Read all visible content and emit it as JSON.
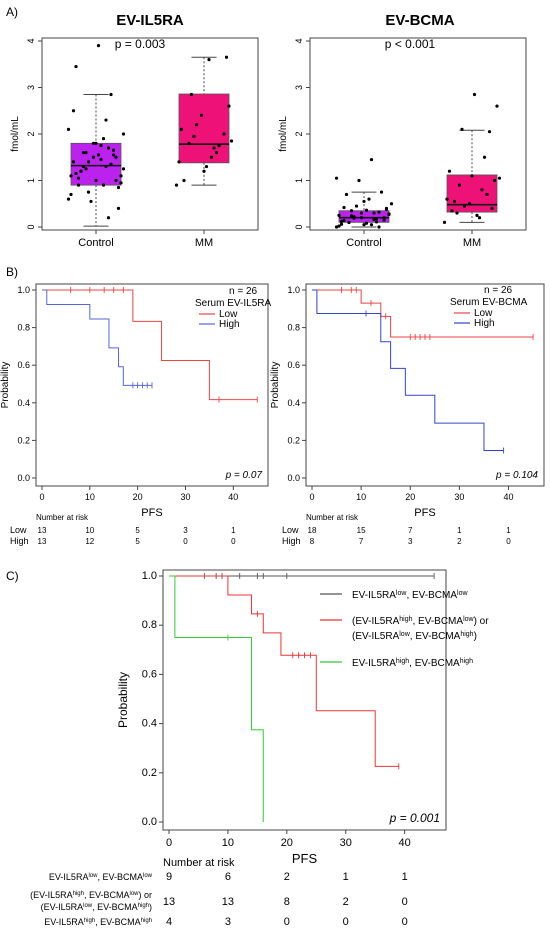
{
  "panels": {
    "a": "A)",
    "b": "B)",
    "c": "C)"
  },
  "chart_data": [
    {
      "id": "a1",
      "type": "box",
      "title": "EV-IL5RA",
      "ylabel": "fmol/mL",
      "pvalue": "p = 0.003",
      "categories": [
        "Control",
        "MM"
      ],
      "ylim": [
        0,
        4
      ],
      "yticks": [
        0,
        1,
        2,
        3,
        4
      ],
      "boxes": [
        {
          "name": "Control",
          "color": "#bb22ee",
          "whisker_low": 0.02,
          "q1": 0.9,
          "median": 1.32,
          "q3": 1.8,
          "whisker_high": 2.85
        },
        {
          "name": "MM",
          "color": "#ee1177",
          "whisker_low": 0.9,
          "q1": 1.38,
          "median": 1.78,
          "q3": 2.86,
          "whisker_high": 3.65
        }
      ],
      "points": [
        [
          0.6,
          0.9,
          1.2,
          1.5,
          1.8,
          1.1,
          1.3,
          1.6,
          0.85,
          1.0,
          1.4,
          1.7,
          1.25,
          0.95,
          1.55,
          1.15,
          1.35,
          0.75,
          2.0,
          1.45,
          1.05,
          1.65,
          0.55,
          2.1,
          1.9,
          1.2,
          1.0,
          1.5,
          0.7,
          2.3,
          1.3,
          0.4,
          1.8,
          2.5,
          0.2,
          1.6,
          1.1,
          3.9,
          3.45,
          2.85,
          1.4,
          1.25,
          1.75,
          0.9,
          1.55
        ],
        [
          0.9,
          1.5,
          1.8,
          2.0,
          2.4,
          1.4,
          1.7,
          2.85,
          3.65,
          1.2,
          2.1,
          1.6,
          1.95,
          2.6,
          1.3,
          1.0,
          1.75,
          2.2,
          1.85,
          3.6
        ]
      ]
    },
    {
      "id": "a2",
      "type": "box",
      "title": "EV-BCMA",
      "ylabel": "fmol/mL",
      "pvalue": "p < 0.001",
      "categories": [
        "Control",
        "MM"
      ],
      "ylim": [
        0,
        4
      ],
      "yticks": [
        0,
        1,
        2,
        3,
        4
      ],
      "boxes": [
        {
          "name": "Control",
          "color": "#bb22ee",
          "whisker_low": 0.0,
          "q1": 0.1,
          "median": 0.2,
          "q3": 0.35,
          "whisker_high": 0.75
        },
        {
          "name": "MM",
          "color": "#ee1177",
          "whisker_low": 0.1,
          "q1": 0.32,
          "median": 0.48,
          "q3": 1.12,
          "whisker_high": 2.08
        }
      ],
      "points": [
        [
          0.0,
          0.05,
          0.1,
          0.15,
          0.2,
          0.25,
          0.3,
          0.35,
          0.4,
          0.05,
          0.12,
          0.18,
          0.22,
          0.28,
          0.08,
          0.14,
          0.32,
          0.45,
          0.5,
          0.6,
          0.7,
          0.75,
          1.0,
          1.05,
          1.45,
          0.1,
          0.2,
          0.3,
          0.02,
          0.16,
          0.24,
          0.38,
          0.55,
          0.06,
          0.11,
          0.19,
          0.27,
          0.36,
          0.42,
          0.0
        ],
        [
          0.1,
          0.2,
          0.3,
          0.4,
          0.5,
          0.6,
          0.8,
          0.9,
          1.0,
          1.1,
          1.2,
          1.5,
          2.1,
          2.6,
          2.85,
          0.35,
          0.7,
          0.45,
          1.05,
          0.25,
          0.55,
          2.05
        ]
      ]
    },
    {
      "id": "b1",
      "type": "km",
      "n_label": "n = 26",
      "legend_title": "Serum EV-IL5RA",
      "pvalue": "p = 0.07",
      "xlabel": "PFS",
      "ylabel": "Probability",
      "xlim": [
        0,
        46
      ],
      "ylim": [
        0,
        1
      ],
      "xticks": [
        0,
        10,
        20,
        30,
        40
      ],
      "yticks": [
        0.0,
        0.2,
        0.4,
        0.6,
        0.8,
        1.0
      ],
      "series": [
        {
          "name": "Low",
          "color": "#ee4444",
          "steps": [
            [
              0,
              1.0
            ],
            [
              19,
              0.833
            ],
            [
              25,
              0.625
            ],
            [
              35,
              0.417
            ],
            [
              45,
              0.417
            ]
          ],
          "censors": [
            [
              6,
              1.0
            ],
            [
              10,
              1.0
            ],
            [
              13,
              1.0
            ],
            [
              15,
              1.0
            ],
            [
              17,
              1.0
            ],
            [
              37,
              0.417
            ],
            [
              45,
              0.417
            ]
          ]
        },
        {
          "name": "High",
          "color": "#5566dd",
          "steps": [
            [
              0,
              1.0
            ],
            [
              1,
              0.923
            ],
            [
              10,
              0.846
            ],
            [
              14,
              0.692
            ],
            [
              16,
              0.592
            ],
            [
              17,
              0.493
            ],
            [
              23,
              0.493
            ]
          ],
          "censors": [
            [
              19,
              0.493
            ],
            [
              20,
              0.493
            ],
            [
              21,
              0.493
            ],
            [
              22,
              0.493
            ],
            [
              23,
              0.493
            ]
          ]
        }
      ],
      "risk": {
        "title": "Number at risk",
        "rows": [
          {
            "label": "Low",
            "values": [
              "13",
              "10",
              "5",
              "3",
              "1"
            ]
          },
          {
            "label": "High",
            "values": [
              "13",
              "12",
              "5",
              "0",
              "0"
            ]
          }
        ]
      }
    },
    {
      "id": "b2",
      "type": "km",
      "n_label": "n = 26",
      "legend_title": "Serum EV-BCMA",
      "pvalue": "p = 0.104",
      "xlabel": "PFS",
      "ylabel": "Probability",
      "xlim": [
        0,
        46
      ],
      "ylim": [
        0,
        1
      ],
      "xticks": [
        0,
        10,
        20,
        30,
        40
      ],
      "yticks": [
        0.0,
        0.2,
        0.4,
        0.6,
        0.8,
        1.0
      ],
      "series": [
        {
          "name": "Low",
          "color": "#ee4444",
          "steps": [
            [
              0,
              1.0
            ],
            [
              10,
              0.93
            ],
            [
              14,
              0.86
            ],
            [
              16,
              0.75
            ],
            [
              45,
              0.75
            ]
          ],
          "censors": [
            [
              6,
              1.0
            ],
            [
              8,
              1.0
            ],
            [
              9,
              1.0
            ],
            [
              12,
              0.93
            ],
            [
              15,
              0.86
            ],
            [
              20,
              0.75
            ],
            [
              21,
              0.75
            ],
            [
              22,
              0.75
            ],
            [
              23,
              0.75
            ],
            [
              24,
              0.75
            ],
            [
              45,
              0.75
            ]
          ]
        },
        {
          "name": "High",
          "color": "#3344cc",
          "steps": [
            [
              0,
              1.0
            ],
            [
              1,
              0.875
            ],
            [
              14,
              0.725
            ],
            [
              16,
              0.583
            ],
            [
              19,
              0.44
            ],
            [
              25,
              0.292
            ],
            [
              35,
              0.146
            ],
            [
              39,
              0.146
            ]
          ],
          "censors": [
            [
              11,
              0.875
            ],
            [
              39,
              0.146
            ]
          ]
        }
      ],
      "risk": {
        "title": "Number at risk",
        "rows": [
          {
            "label": "Low",
            "values": [
              "18",
              "15",
              "7",
              "1",
              "1"
            ]
          },
          {
            "label": "High",
            "values": [
              "8",
              "7",
              "3",
              "2",
              "0"
            ]
          }
        ]
      }
    },
    {
      "id": "c",
      "type": "km",
      "pvalue": "p = 0.001",
      "xlabel": "PFS",
      "ylabel": "Probability",
      "xlim": [
        0,
        46
      ],
      "ylim": [
        0,
        1
      ],
      "xticks": [
        0,
        10,
        20,
        30,
        40
      ],
      "yticks": [
        0.0,
        0.2,
        0.4,
        0.6,
        0.8,
        1.0
      ],
      "series": [
        {
          "name": "EV-IL5RA low, EV-BCMA low",
          "color": "#555555",
          "steps": [
            [
              0,
              1.0
            ],
            [
              45,
              1.0
            ]
          ],
          "censors": [
            [
              6,
              1.0
            ],
            [
              8,
              1.0
            ],
            [
              9,
              1.0
            ],
            [
              12,
              1.0
            ],
            [
              15,
              1.0
            ],
            [
              16,
              1.0
            ],
            [
              20,
              1.0
            ],
            [
              45,
              1.0
            ]
          ]
        },
        {
          "name": "(EV-IL5RA high, EV-BCMA low) or (EV-IL5RA low, EV-BCMA high)",
          "color": "#ee3333",
          "steps": [
            [
              0,
              1.0
            ],
            [
              10,
              0.923
            ],
            [
              14,
              0.846
            ],
            [
              16,
              0.769
            ],
            [
              19,
              0.678
            ],
            [
              25,
              0.452
            ],
            [
              35,
              0.226
            ],
            [
              39,
              0.226
            ]
          ],
          "censors": [
            [
              15,
              0.846
            ],
            [
              21,
              0.678
            ],
            [
              22,
              0.678
            ],
            [
              23,
              0.678
            ],
            [
              24,
              0.678
            ],
            [
              39,
              0.226
            ]
          ]
        },
        {
          "name": "EV-IL5RA high, EV-BCMA high",
          "color": "#33cc33",
          "steps": [
            [
              0,
              1.0
            ],
            [
              1,
              0.75
            ],
            [
              14,
              0.375
            ],
            [
              16,
              0.0
            ]
          ],
          "censors": [
            [
              10,
              0.75
            ]
          ]
        }
      ],
      "risk": {
        "title": "Number at risk",
        "rows": [
          {
            "label": "EV-IL5RAlow, EV-BCMAlow",
            "values": [
              "9",
              "6",
              "2",
              "1",
              "1"
            ]
          },
          {
            "label": "(EV-IL5RAhigh, EV-BCMAlow) or (EV-IL5RAlow, EV-BCMAhigh)",
            "values": [
              "13",
              "13",
              "8",
              "2",
              "0"
            ]
          },
          {
            "label": "EV-IL5RAhigh, EV-BCMAhigh",
            "values": [
              "4",
              "3",
              "0",
              "0",
              "0"
            ]
          }
        ]
      }
    }
  ]
}
